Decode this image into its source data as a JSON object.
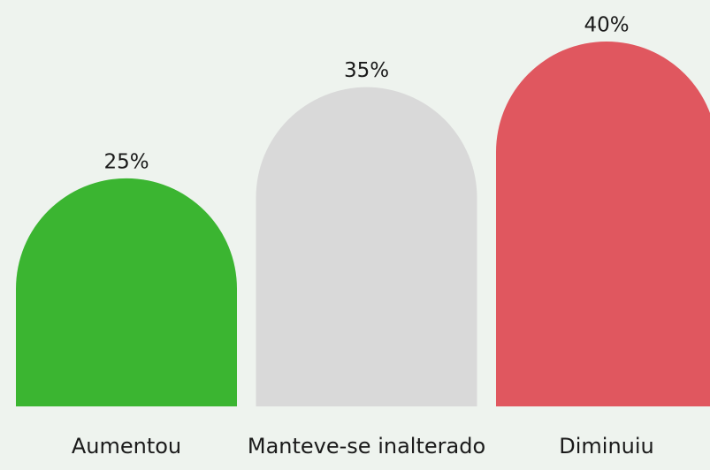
{
  "chart_data": {
    "type": "bar",
    "categories": [
      "Aumentou",
      "Manteve-se inalterado",
      "Diminuiu"
    ],
    "values": [
      25,
      35,
      40
    ],
    "value_labels": [
      "25%",
      "35%",
      "40%"
    ],
    "colors": [
      "#3bb531",
      "#d9d9d9",
      "#e0575f"
    ]
  }
}
